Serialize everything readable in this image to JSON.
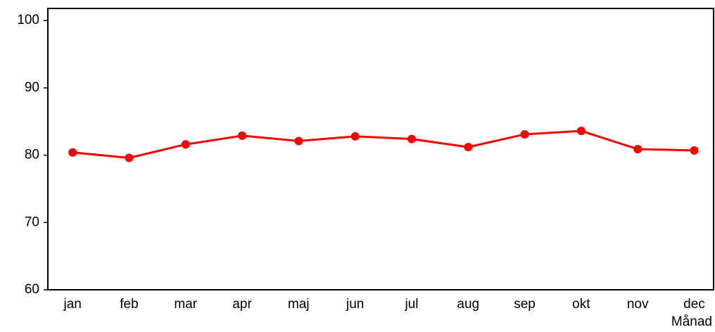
{
  "chart_data": {
    "type": "line",
    "x_label": "Månad",
    "categories": [
      "jan",
      "feb",
      "mar",
      "apr",
      "maj",
      "jun",
      "jul",
      "aug",
      "sep",
      "okt",
      "nov",
      "dec"
    ],
    "values": [
      80.4,
      79.6,
      81.6,
      82.9,
      82.1,
      82.8,
      82.4,
      81.2,
      83.1,
      83.6,
      80.9,
      80.7
    ],
    "color": "#ff0000",
    "ylim": [
      60,
      101.8
    ],
    "yticks": [
      60,
      70,
      80,
      90,
      100
    ]
  }
}
